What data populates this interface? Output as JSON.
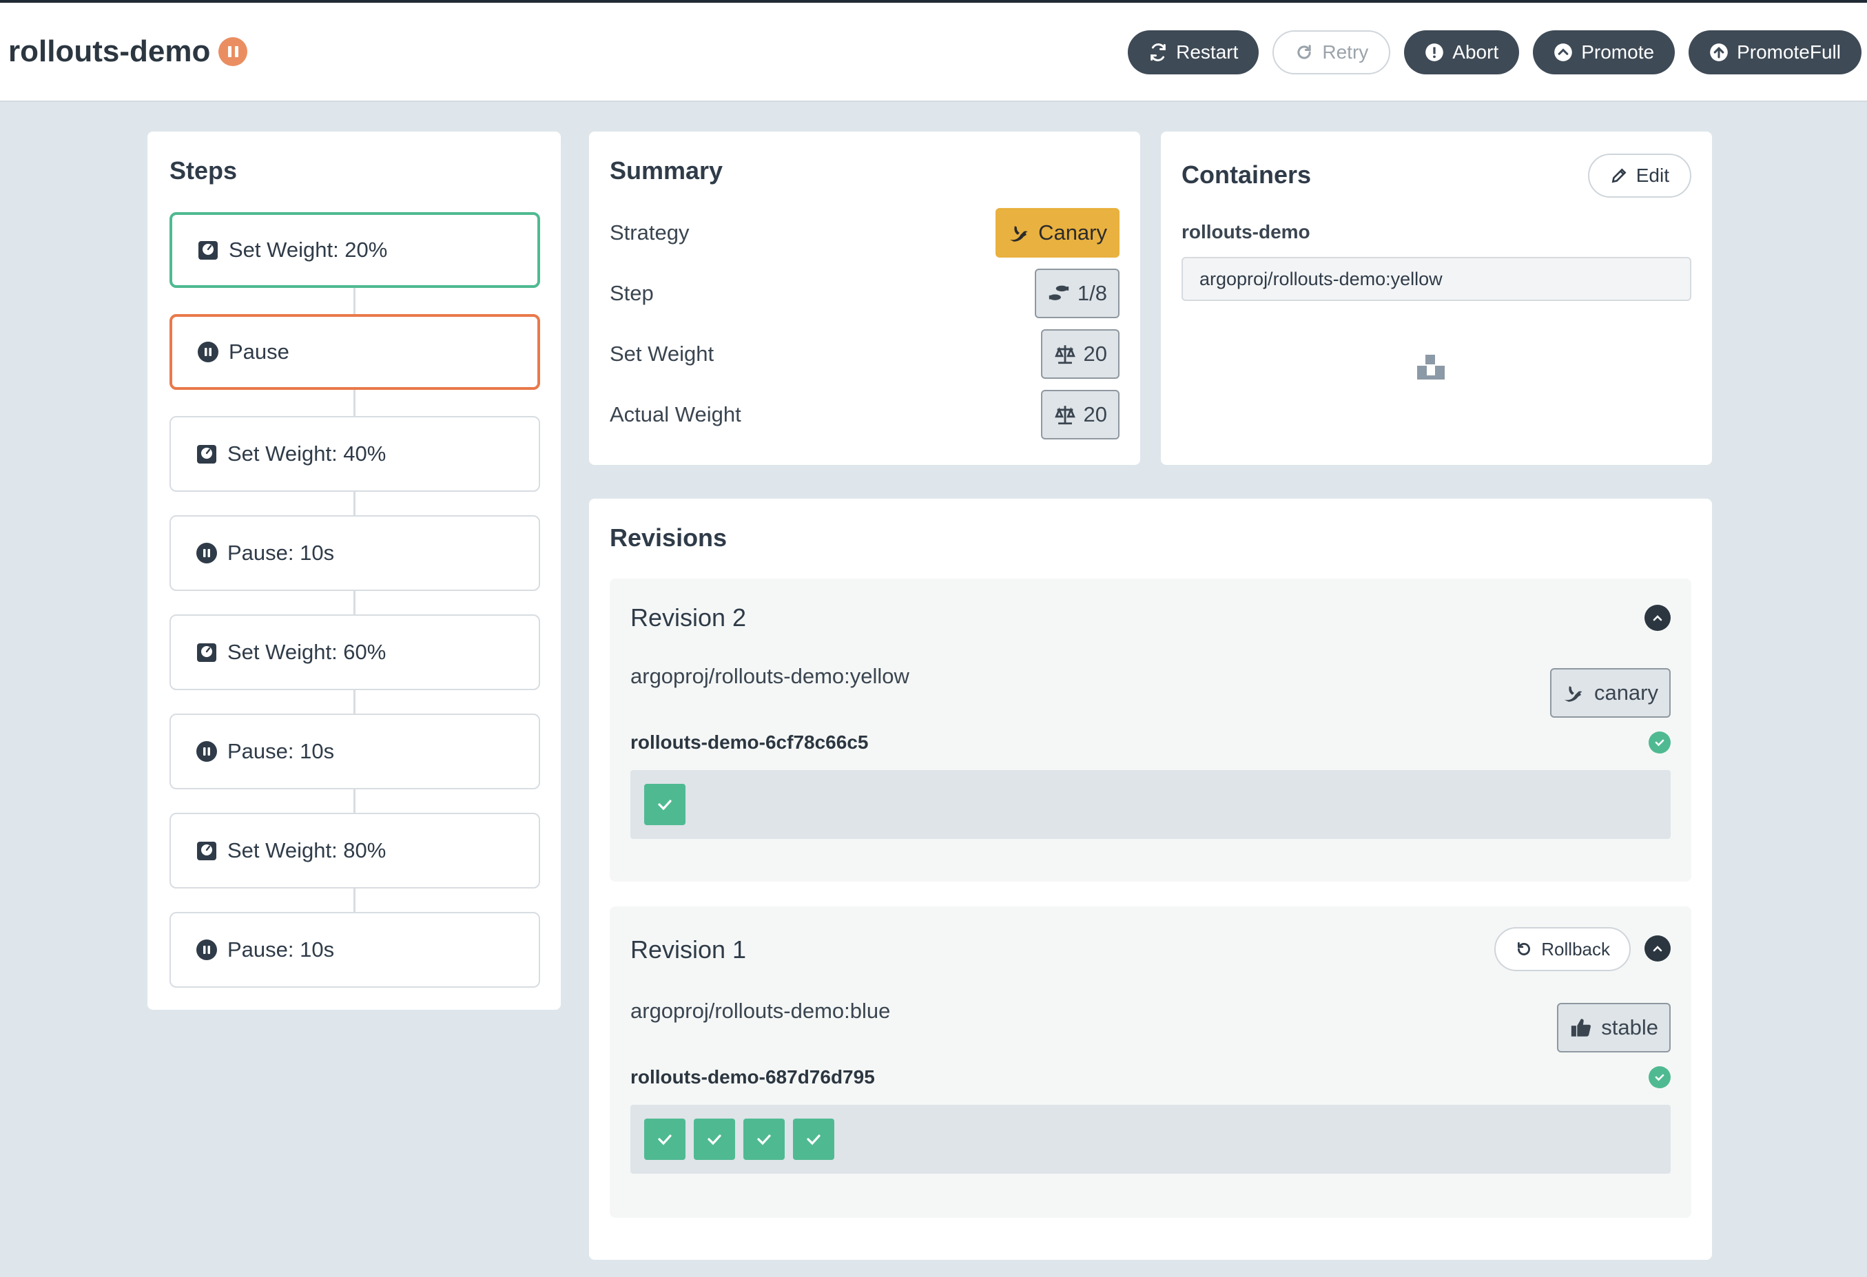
{
  "header": {
    "title": "rollouts-demo",
    "status_icon": "pause-circle-icon",
    "actions": {
      "restart": "Restart",
      "retry": "Retry",
      "abort": "Abort",
      "promote": "Promote",
      "promote_full": "PromoteFull"
    }
  },
  "steps": {
    "title": "Steps",
    "items": [
      {
        "label": "Set Weight: 20%",
        "kind": "weight",
        "state": "completed"
      },
      {
        "label": "Pause",
        "kind": "pause",
        "state": "current"
      },
      {
        "label": "Set Weight: 40%",
        "kind": "weight",
        "state": "pending"
      },
      {
        "label": "Pause: 10s",
        "kind": "pause",
        "state": "pending"
      },
      {
        "label": "Set Weight: 60%",
        "kind": "weight",
        "state": "pending"
      },
      {
        "label": "Pause: 10s",
        "kind": "pause",
        "state": "pending"
      },
      {
        "label": "Set Weight: 80%",
        "kind": "weight",
        "state": "pending"
      },
      {
        "label": "Pause: 10s",
        "kind": "pause",
        "state": "pending"
      }
    ]
  },
  "summary": {
    "title": "Summary",
    "strategy_label": "Strategy",
    "strategy_value": "Canary",
    "step_label": "Step",
    "step_value": "1/8",
    "set_weight_label": "Set Weight",
    "set_weight_value": "20",
    "actual_weight_label": "Actual Weight",
    "actual_weight_value": "20"
  },
  "containers": {
    "title": "Containers",
    "edit_label": "Edit",
    "name": "rollouts-demo",
    "image": "argoproj/rollouts-demo:yellow"
  },
  "revisions": {
    "title": "Revisions",
    "rollback_label": "Rollback",
    "items": [
      {
        "title": "Revision 2",
        "image": "argoproj/rollouts-demo:yellow",
        "tag": "canary",
        "replicaset": "rollouts-demo-6cf78c66c5",
        "pods": 1
      },
      {
        "title": "Revision 1",
        "image": "argoproj/rollouts-demo:blue",
        "tag": "stable",
        "replicaset": "rollouts-demo-687d76d795",
        "pods": 4
      }
    ]
  },
  "colors": {
    "completed": "#4fba92",
    "current": "#e9794b",
    "canary": "#e9b13f",
    "primary_button": "#3e4a56"
  }
}
